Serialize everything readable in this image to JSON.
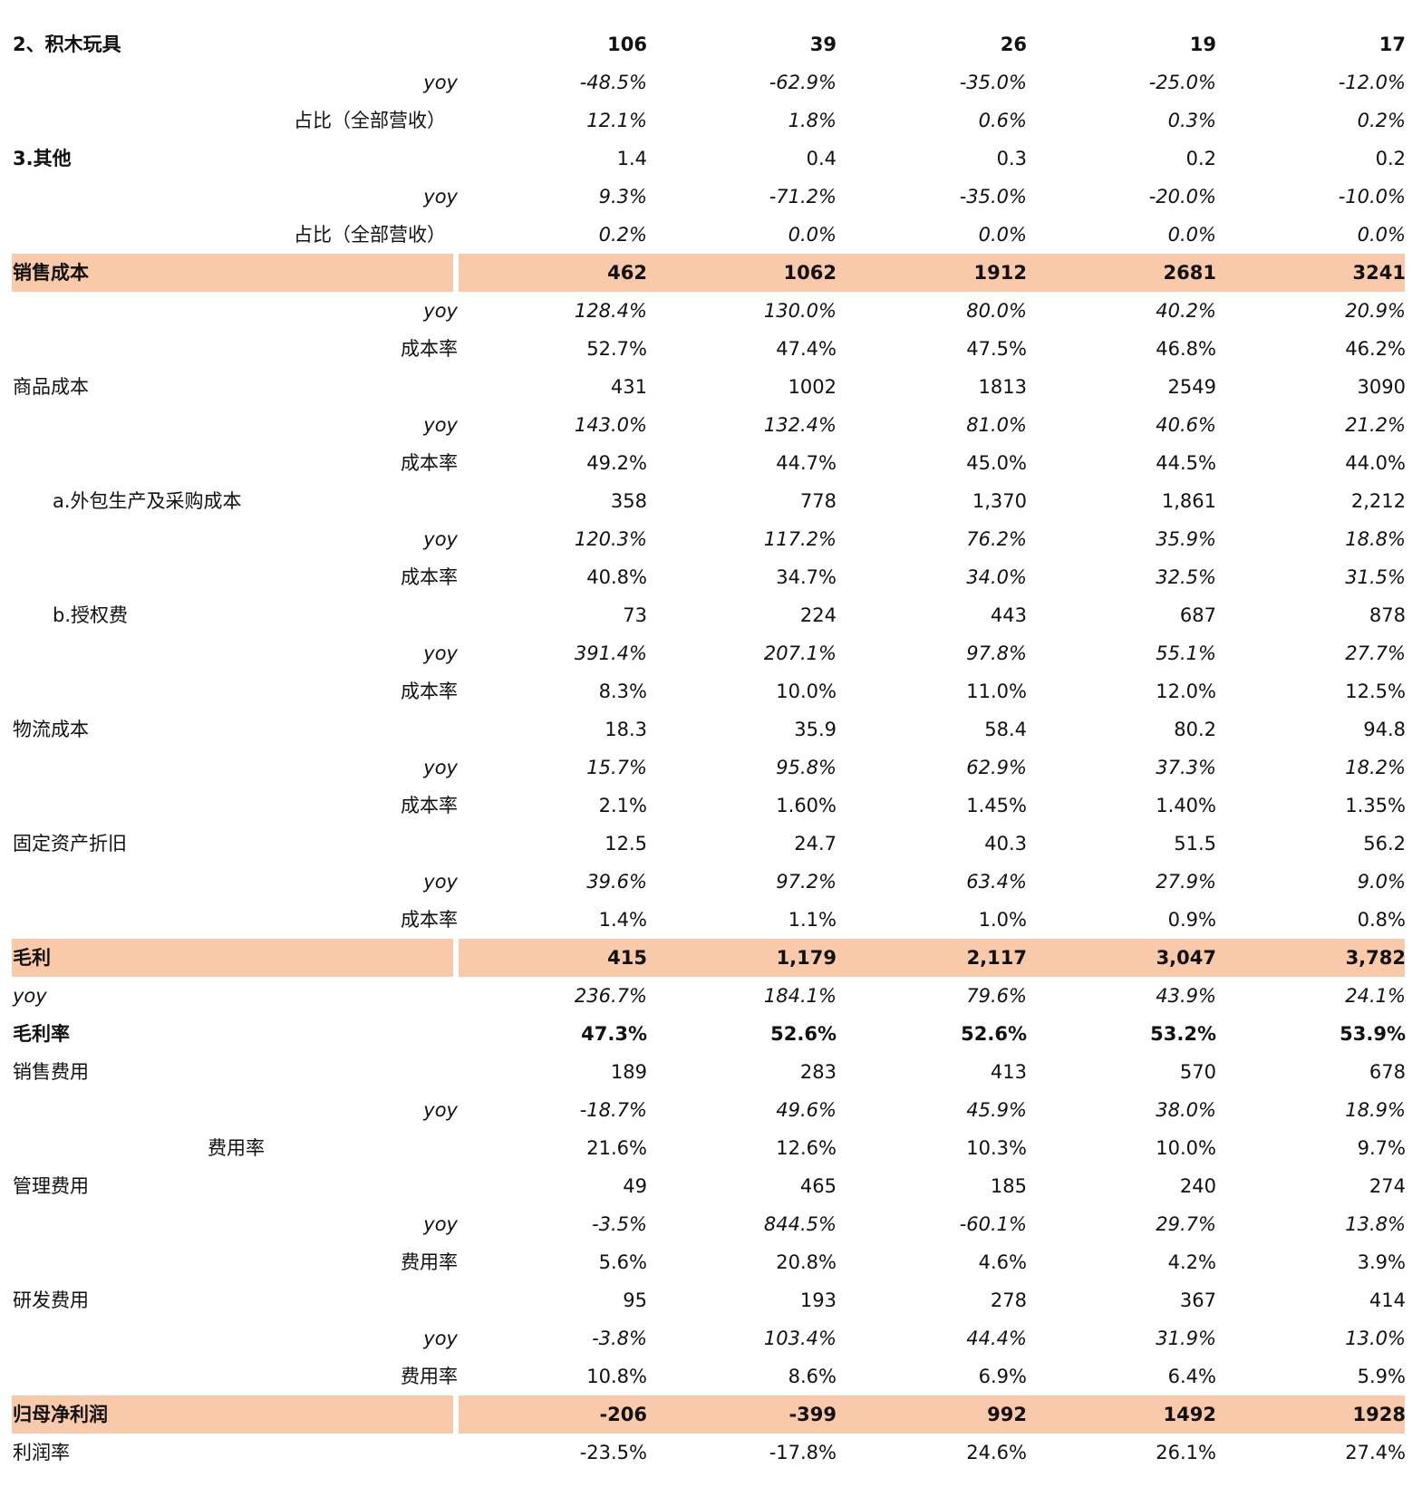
{
  "rows": [
    {
      "label": "2、积木玩具",
      "values": [
        "106",
        "39",
        "26",
        "19",
        "17"
      ]
    },
    {
      "label": "yoy",
      "values": [
        "-48.5%",
        "-62.9%",
        "-35.0%",
        "-25.0%",
        "-12.0%"
      ]
    },
    {
      "label": "占比（全部营收）",
      "values": [
        "12.1%",
        "1.8%",
        "0.6%",
        "0.3%",
        "0.2%"
      ]
    },
    {
      "label": "3.其他",
      "values": [
        "1.4",
        "0.4",
        "0.3",
        "0.2",
        "0.2"
      ]
    },
    {
      "label": "yoy",
      "values": [
        "9.3%",
        "-71.2%",
        "-35.0%",
        "-20.0%",
        "-10.0%"
      ]
    },
    {
      "label": "占比（全部营收）",
      "values": [
        "0.2%",
        "0.0%",
        "0.0%",
        "0.0%",
        "0.0%"
      ]
    },
    {
      "label": "销售成本",
      "values": [
        "462",
        "1062",
        "1912",
        "2681",
        "3241"
      ]
    },
    {
      "label": "yoy",
      "values": [
        "128.4%",
        "130.0%",
        "80.0%",
        "40.2%",
        "20.9%"
      ]
    },
    {
      "label": "成本率",
      "values": [
        "52.7%",
        "47.4%",
        "47.5%",
        "46.8%",
        "46.2%"
      ]
    },
    {
      "label": "商品成本",
      "values": [
        "431",
        "1002",
        "1813",
        "2549",
        "3090"
      ]
    },
    {
      "label": "yoy",
      "values": [
        "143.0%",
        "132.4%",
        "81.0%",
        "40.6%",
        "21.2%"
      ]
    },
    {
      "label": "成本率",
      "values": [
        "49.2%",
        "44.7%",
        "45.0%",
        "44.5%",
        "44.0%"
      ]
    },
    {
      "label": "a.外包生产及采购成本",
      "values": [
        "358",
        "778",
        "1,370",
        "1,861",
        "2,212"
      ]
    },
    {
      "label": "yoy",
      "values": [
        "120.3%",
        "117.2%",
        "76.2%",
        "35.9%",
        "18.8%"
      ]
    },
    {
      "label": "成本率",
      "values": [
        "40.8%",
        "34.7%",
        "34.0%",
        "32.5%",
        "31.5%"
      ]
    },
    {
      "label": "b.授权费",
      "values": [
        "73",
        "224",
        "443",
        "687",
        "878"
      ]
    },
    {
      "label": "yoy",
      "values": [
        "391.4%",
        "207.1%",
        "97.8%",
        "55.1%",
        "27.7%"
      ]
    },
    {
      "label": "成本率",
      "values": [
        "8.3%",
        "10.0%",
        "11.0%",
        "12.0%",
        "12.5%"
      ]
    },
    {
      "label": "物流成本",
      "values": [
        "18.3",
        "35.9",
        "58.4",
        "80.2",
        "94.8"
      ]
    },
    {
      "label": "yoy",
      "values": [
        "15.7%",
        "95.8%",
        "62.9%",
        "37.3%",
        "18.2%"
      ]
    },
    {
      "label": "成本率",
      "values": [
        "2.1%",
        "1.60%",
        "1.45%",
        "1.40%",
        "1.35%"
      ]
    },
    {
      "label": "固定资产折旧",
      "values": [
        "12.5",
        "24.7",
        "40.3",
        "51.5",
        "56.2"
      ]
    },
    {
      "label": "yoy",
      "values": [
        "39.6%",
        "97.2%",
        "63.4%",
        "27.9%",
        "9.0%"
      ]
    },
    {
      "label": "成本率",
      "values": [
        "1.4%",
        "1.1%",
        "1.0%",
        "0.9%",
        "0.8%"
      ]
    },
    {
      "label": "毛利",
      "values": [
        "415",
        "1,179",
        "2,117",
        "3,047",
        "3,782"
      ]
    },
    {
      "label": "yoy",
      "values": [
        "236.7%",
        "184.1%",
        "79.6%",
        "43.9%",
        "24.1%"
      ]
    },
    {
      "label": "毛利率",
      "values": [
        "47.3%",
        "52.6%",
        "52.6%",
        "53.2%",
        "53.9%"
      ]
    },
    {
      "label": "销售费用",
      "values": [
        "189",
        "283",
        "413",
        "570",
        "678"
      ]
    },
    {
      "label": "yoy",
      "values": [
        "-18.7%",
        "49.6%",
        "45.9%",
        "38.0%",
        "18.9%"
      ]
    },
    {
      "label": "费用率",
      "values": [
        "21.6%",
        "12.6%",
        "10.3%",
        "10.0%",
        "9.7%"
      ]
    },
    {
      "label": "管理费用",
      "values": [
        "49",
        "465",
        "185",
        "240",
        "274"
      ]
    },
    {
      "label": "yoy",
      "values": [
        "-3.5%",
        "844.5%",
        "-60.1%",
        "29.7%",
        "13.8%"
      ]
    },
    {
      "label": "费用率",
      "values": [
        "5.6%",
        "20.8%",
        "4.6%",
        "4.2%",
        "3.9%"
      ]
    },
    {
      "label": "研发费用",
      "values": [
        "95",
        "193",
        "278",
        "367",
        "414"
      ]
    },
    {
      "label": "yoy",
      "values": [
        "-3.8%",
        "103.4%",
        "44.4%",
        "31.9%",
        "13.0%"
      ]
    },
    {
      "label": "费用率",
      "values": [
        "10.8%",
        "8.6%",
        "6.9%",
        "6.4%",
        "5.9%"
      ]
    },
    {
      "label": "归母净利润",
      "values": [
        "-206",
        "-399",
        "992",
        "1492",
        "1928"
      ]
    },
    {
      "label": "利润率",
      "values": [
        "-23.5%",
        "-17.8%",
        "24.6%",
        "26.1%",
        "27.4%"
      ]
    }
  ],
  "highlight_color": "#f8caaa"
}
